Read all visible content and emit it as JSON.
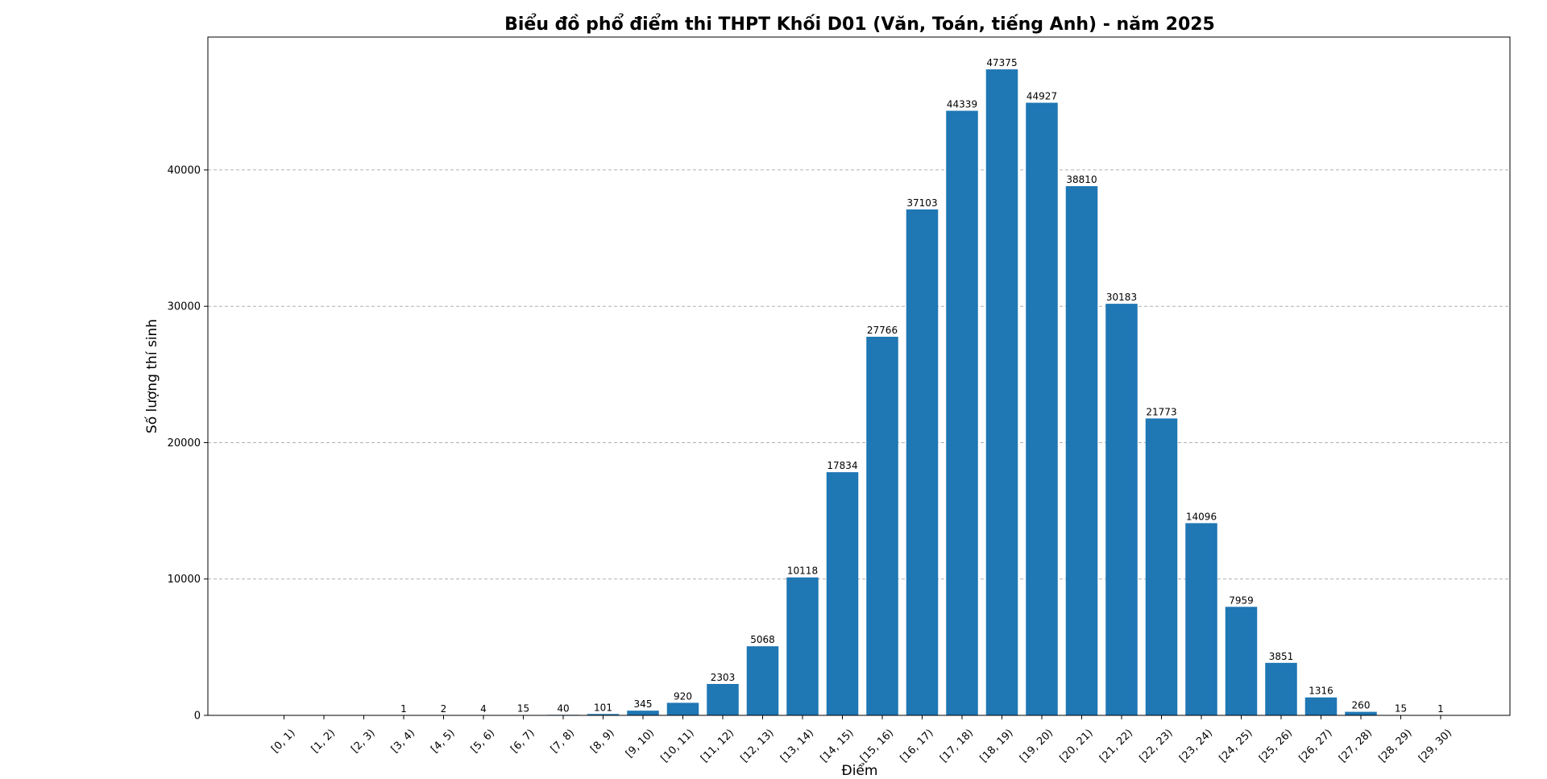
{
  "chart_data": {
    "type": "bar",
    "title": "Biểu đồ phổ điểm thi THPT Khối D01 (Văn, Toán, tiếng Anh) - năm 2025",
    "xlabel": "Điểm",
    "ylabel": "Số lượng thí sinh",
    "categories": [
      "[0, 1)",
      "[1, 2)",
      "[2, 3)",
      "[3, 4)",
      "[4, 5)",
      "[5, 6)",
      "[6, 7)",
      "[7, 8)",
      "[8, 9)",
      "[9, 10)",
      "[10, 11)",
      "[11, 12)",
      "[12, 13)",
      "[13, 14)",
      "[14, 15)",
      "[15, 16)",
      "[16, 17)",
      "[17, 18)",
      "[18, 19)",
      "[19, 20)",
      "[20, 21)",
      "[21, 22)",
      "[22, 23)",
      "[23, 24)",
      "[24, 25)",
      "[25, 26)",
      "[26, 27)",
      "[27, 28)",
      "[28, 29)",
      "[29, 30)"
    ],
    "values": [
      0,
      0,
      0,
      1,
      2,
      4,
      15,
      40,
      101,
      345,
      920,
      2303,
      5068,
      10118,
      17834,
      27766,
      37103,
      44339,
      47375,
      44927,
      38810,
      30183,
      21773,
      14096,
      7959,
      3851,
      1316,
      260,
      15,
      1
    ],
    "data_labels": [
      "",
      "",
      "",
      "1",
      "2",
      "4",
      "15",
      "40",
      "101",
      "345",
      "920",
      "2303",
      "5068",
      "10118",
      "17834",
      "27766",
      "37103",
      "44339",
      "47375",
      "44927",
      "38810",
      "30183",
      "21773",
      "14096",
      "7959",
      "3851",
      "1316",
      "260",
      "15",
      "1"
    ],
    "yticks": [
      0,
      10000,
      20000,
      30000,
      40000
    ],
    "ytick_labels": [
      "0",
      "10000",
      "20000",
      "30000",
      "40000"
    ],
    "ylim": [
      0,
      49744
    ],
    "grid": "y-dashed",
    "bar_color": "#1f77b4"
  }
}
